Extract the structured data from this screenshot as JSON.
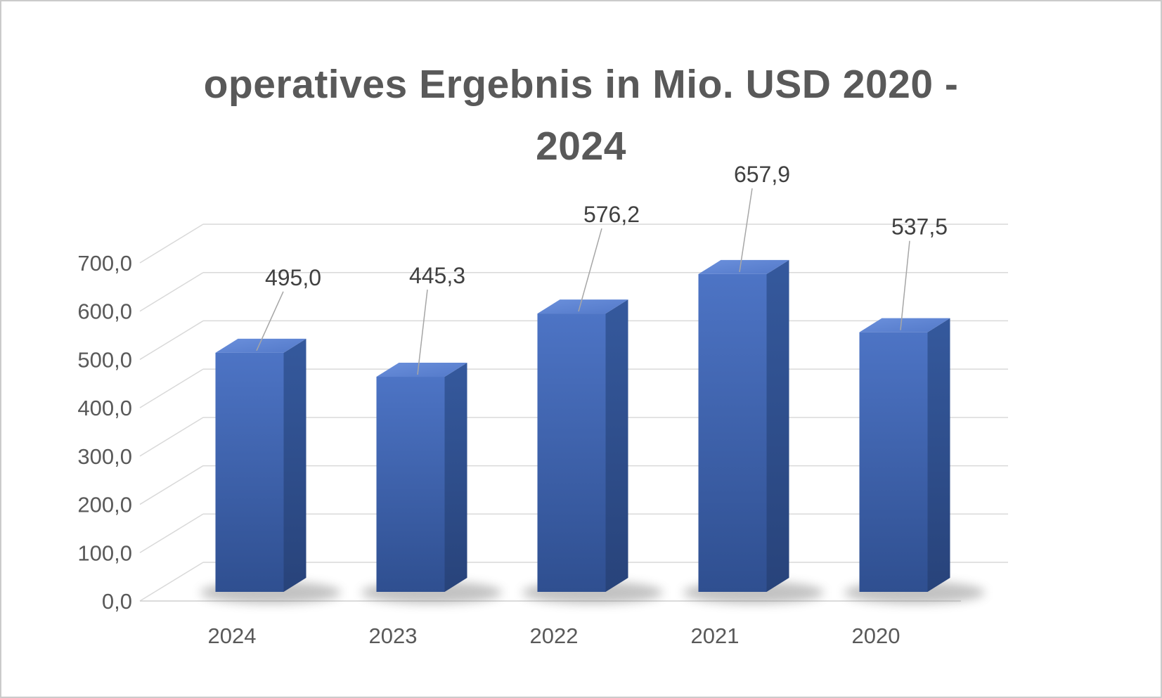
{
  "page": {
    "background": "#ffffff",
    "border_color": "#cbcbcb"
  },
  "chart": {
    "title_lines": [
      "operatives Ergebnis in Mio. USD 2020 -",
      "2024"
    ]
  },
  "chart_data": {
    "type": "bar",
    "style": "3d-column",
    "title": "operatives Ergebnis in Mio. USD 2020 - 2024",
    "categories": [
      "2024",
      "2023",
      "2022",
      "2021",
      "2020"
    ],
    "values": [
      495.0,
      445.3,
      576.2,
      657.9,
      537.5
    ],
    "value_labels": [
      "495,0",
      "445,3",
      "576,2",
      "657,9",
      "537,5"
    ],
    "xlabel": "",
    "ylabel": "",
    "ylim": [
      0,
      700
    ],
    "ytick_step": 100,
    "ytick_labels": [
      "0,0",
      "100,0",
      "200,0",
      "300,0",
      "400,0",
      "500,0",
      "600,0",
      "700,0"
    ],
    "grid": true,
    "legend": "none",
    "colors": {
      "bar_front_top": "#4d74c5",
      "bar_front_bottom": "#2f4f90",
      "bar_top_light": "#6b90dc",
      "bar_top_dark": "#5379c9",
      "bar_side_top": "#35599d",
      "bar_side_bottom": "#28437a",
      "gridline": "#d9d9d9",
      "axis_line": "#cfcfcf",
      "axis_text": "#595959",
      "data_label_text": "#404040",
      "leader_line": "#a6a6a6",
      "shadow": "#7a7a7a",
      "title_text": "#595959"
    }
  }
}
